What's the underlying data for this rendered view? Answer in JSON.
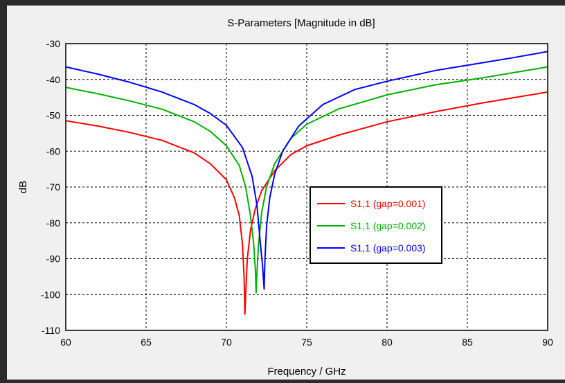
{
  "chart_data": {
    "type": "line",
    "title": "S-Parameters [Magnitude in dB]",
    "xlabel": "Frequency / GHz",
    "ylabel": "dB",
    "xlim": [
      60,
      90
    ],
    "ylim": [
      -110,
      -30
    ],
    "xticks": [
      60,
      65,
      70,
      75,
      80,
      85,
      90
    ],
    "yticks": [
      -30,
      -40,
      -50,
      -60,
      -70,
      -80,
      -90,
      -100,
      -110
    ],
    "grid": true,
    "legend_position": "center-right",
    "series": [
      {
        "name": "S1,1 (gap=0.001)",
        "color": "#ff0000",
        "x": [
          60,
          62,
          64,
          66,
          68,
          69,
          70,
          70.5,
          70.8,
          71.0,
          71.1,
          71.15,
          71.2,
          71.3,
          71.5,
          71.8,
          72.2,
          73,
          74,
          75,
          77,
          80,
          83,
          86,
          88,
          90
        ],
        "y": [
          -51.5,
          -53,
          -54.8,
          -57,
          -60.5,
          -63.5,
          -68,
          -73,
          -78,
          -86,
          -95,
          -105.5,
          -100,
          -90,
          -82,
          -76,
          -71,
          -65.5,
          -61,
          -58.5,
          -55.5,
          -51.8,
          -49,
          -46.5,
          -45,
          -43.5
        ]
      },
      {
        "name": "S1,1 (gap=0.002)",
        "color": "#00b000",
        "x": [
          60,
          62,
          64,
          66,
          68,
          69,
          70,
          70.8,
          71.2,
          71.5,
          71.7,
          71.8,
          71.85,
          71.9,
          72.0,
          72.2,
          72.5,
          73,
          74,
          75,
          77,
          80,
          83,
          86,
          88,
          90
        ],
        "y": [
          -42.2,
          -44,
          -46,
          -48.3,
          -51.8,
          -54.5,
          -58.5,
          -64,
          -70,
          -78,
          -86,
          -93,
          -99.5,
          -94,
          -86,
          -77,
          -70,
          -63.5,
          -56.5,
          -52.5,
          -48.2,
          -44.3,
          -41.5,
          -39.5,
          -38,
          -36.5
        ]
      },
      {
        "name": "S1,1 (gap=0.003)",
        "color": "#0000ff",
        "x": [
          60,
          62,
          64,
          66,
          68,
          69,
          70,
          71,
          71.6,
          71.9,
          72.1,
          72.25,
          72.35,
          72.4,
          72.5,
          72.7,
          73,
          73.5,
          74.5,
          76,
          78,
          80,
          83,
          86,
          88,
          90
        ],
        "y": [
          -36.5,
          -38.5,
          -40.8,
          -43.5,
          -47,
          -49.5,
          -52.8,
          -59,
          -67,
          -75,
          -85,
          -92,
          -98.5,
          -90,
          -81,
          -73,
          -66.5,
          -60,
          -53,
          -47,
          -42.8,
          -40.5,
          -37.5,
          -35.3,
          -33.8,
          -32.2
        ]
      }
    ]
  }
}
